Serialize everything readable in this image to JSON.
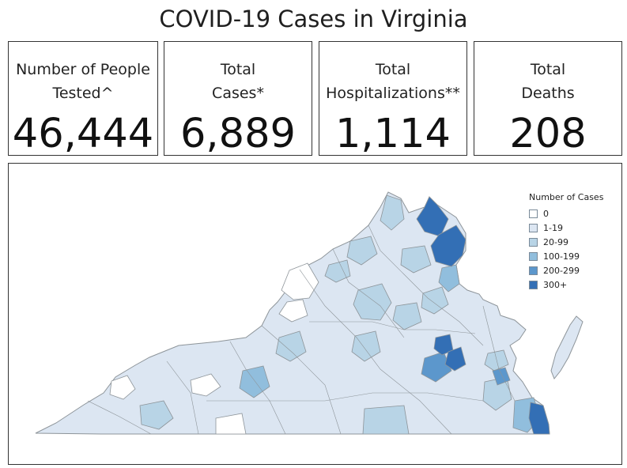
{
  "header": {
    "title": "COVID-19 Cases in Virginia"
  },
  "metrics": [
    {
      "label": "Number of People\nTested^",
      "value": "46,444"
    },
    {
      "label": "Total\nCases*",
      "value": "6,889"
    },
    {
      "label": "Total\nHospitalizations**",
      "value": "1,114"
    },
    {
      "label": "Total\nDeaths",
      "value": "208"
    }
  ],
  "legend": {
    "title": "Number of Cases",
    "items": [
      {
        "label": "0",
        "color": "#ffffff"
      },
      {
        "label": "1-19",
        "color": "#dce6f2"
      },
      {
        "label": "20-99",
        "color": "#b8d4e6"
      },
      {
        "label": "100-199",
        "color": "#91bedd"
      },
      {
        "label": "200-299",
        "color": "#5c97cc"
      },
      {
        "label": "300+",
        "color": "#336fb5"
      }
    ]
  },
  "map": {
    "state": "Virginia",
    "base_color": "#dce6f2",
    "border_color": "#8d9499"
  }
}
